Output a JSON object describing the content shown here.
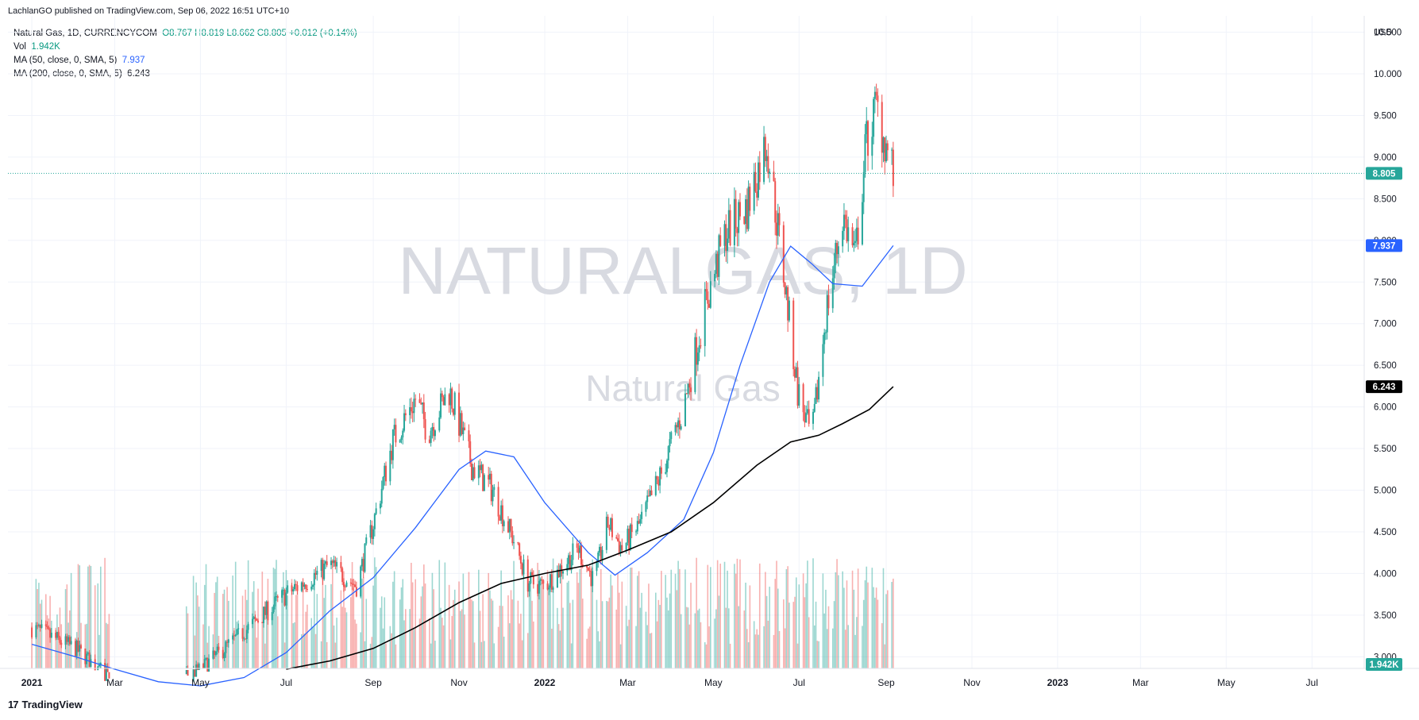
{
  "caption": "LachlanGO published on TradingView.com, Sep 06, 2022 16:51 UTC+10",
  "legend": {
    "symbol": "Natural Gas, 1D, CURRENCYCOM",
    "ohlc": "O8.767  H8.819  L8.662  C8.805",
    "change": "+0.012 (+0.14%)",
    "vol_label": "Vol",
    "vol_value": "1.942K",
    "ma50_label": "MA (50, close, 0, SMA, 5)",
    "ma50_value": "7.937",
    "ma200_label": "MA (200, close, 0, SMA, 5)",
    "ma200_value": "6.243"
  },
  "watermark": {
    "main": "NATURALGAS, 1D",
    "sub": "Natural Gas"
  },
  "logo": {
    "icon": "tradingview-logo-icon",
    "text": "TradingView"
  },
  "badges": {
    "currency": "USD",
    "price": "8.805",
    "ma50": "7.937",
    "ma200": "6.243",
    "volume": "1.942K"
  },
  "colors": {
    "up": "#26a69a",
    "down": "#ef5350",
    "ma50": "#2962ff",
    "ma200": "#000000",
    "price_badge": "#26a69a",
    "grid": "#f0f3fa"
  },
  "chart_data": {
    "type": "candlestick",
    "y_axis_ticks": [
      "3.000",
      "3.500",
      "4.000",
      "4.500",
      "5.000",
      "5.500",
      "6.000",
      "6.500",
      "7.000",
      "7.500",
      "8.000",
      "8.500",
      "9.000",
      "9.500",
      "10.000",
      "10.500"
    ],
    "ylim": [
      3.0,
      10.5
    ],
    "x_axis_ticks": [
      "2021",
      "Mar",
      "May",
      "Jul",
      "Sep",
      "Nov",
      "2022",
      "Mar",
      "May",
      "Jul",
      "Sep",
      "Nov",
      "2023",
      "Mar",
      "May",
      "Jul"
    ],
    "x_tick_bold": [
      "2021",
      "2022",
      "2023"
    ],
    "last_price": 8.805,
    "price_path": [
      [
        "2021-01-01",
        3.35
      ],
      [
        "2021-02-01",
        3.1
      ],
      [
        "2021-03-01",
        2.7
      ],
      [
        "2021-04-01",
        2.6
      ],
      [
        "2021-05-01",
        2.85
      ],
      [
        "2021-06-01",
        3.3
      ],
      [
        "2021-07-01",
        3.75
      ],
      [
        "2021-08-01",
        4.1
      ],
      [
        "2021-08-20",
        3.85
      ],
      [
        "2021-09-01",
        4.6
      ],
      [
        "2021-09-15",
        5.6
      ],
      [
        "2021-10-01",
        6.1
      ],
      [
        "2021-10-10",
        5.7
      ],
      [
        "2021-10-25",
        6.2
      ],
      [
        "2021-11-10",
        5.3
      ],
      [
        "2021-11-25",
        5.0
      ],
      [
        "2021-12-10",
        4.4
      ],
      [
        "2021-12-20",
        3.9
      ],
      [
        "2022-01-01",
        3.85
      ],
      [
        "2022-01-25",
        4.3
      ],
      [
        "2022-02-05",
        3.9
      ],
      [
        "2022-02-15",
        4.6
      ],
      [
        "2022-02-25",
        4.3
      ],
      [
        "2022-03-10",
        4.6
      ],
      [
        "2022-03-25",
        5.2
      ],
      [
        "2022-04-10",
        6.0
      ],
      [
        "2022-04-25",
        7.2
      ],
      [
        "2022-05-10",
        8.1
      ],
      [
        "2022-05-25",
        8.4
      ],
      [
        "2022-06-08",
        9.2
      ],
      [
        "2022-06-20",
        7.6
      ],
      [
        "2022-06-30",
        6.2
      ],
      [
        "2022-07-10",
        5.6
      ],
      [
        "2022-07-20",
        7.1
      ],
      [
        "2022-08-01",
        8.3
      ],
      [
        "2022-08-10",
        7.8
      ],
      [
        "2022-08-18",
        9.2
      ],
      [
        "2022-08-25",
        9.6
      ],
      [
        "2022-09-06",
        8.805
      ]
    ],
    "ma50": [
      [
        "2021-01-01",
        3.15
      ],
      [
        "2021-02-01",
        3.0
      ],
      [
        "2021-03-01",
        2.85
      ],
      [
        "2021-04-01",
        2.7
      ],
      [
        "2021-05-01",
        2.65
      ],
      [
        "2021-06-01",
        2.75
      ],
      [
        "2021-07-01",
        3.05
      ],
      [
        "2021-08-01",
        3.55
      ],
      [
        "2021-09-01",
        3.95
      ],
      [
        "2021-10-01",
        4.55
      ],
      [
        "2021-11-01",
        5.25
      ],
      [
        "2021-11-20",
        5.47
      ],
      [
        "2021-12-10",
        5.4
      ],
      [
        "2022-01-01",
        4.85
      ],
      [
        "2022-02-01",
        4.25
      ],
      [
        "2022-02-20",
        3.98
      ],
      [
        "2022-03-15",
        4.25
      ],
      [
        "2022-04-10",
        4.65
      ],
      [
        "2022-05-01",
        5.45
      ],
      [
        "2022-05-20",
        6.5
      ],
      [
        "2022-06-10",
        7.5
      ],
      [
        "2022-06-25",
        7.93
      ],
      [
        "2022-07-10",
        7.72
      ],
      [
        "2022-07-25",
        7.48
      ],
      [
        "2022-08-15",
        7.45
      ],
      [
        "2022-09-06",
        7.937
      ]
    ],
    "ma200": [
      [
        "2021-07-01",
        2.85
      ],
      [
        "2021-08-01",
        2.95
      ],
      [
        "2021-09-01",
        3.1
      ],
      [
        "2021-10-01",
        3.35
      ],
      [
        "2021-11-01",
        3.65
      ],
      [
        "2021-12-01",
        3.88
      ],
      [
        "2022-01-01",
        4.0
      ],
      [
        "2022-02-01",
        4.1
      ],
      [
        "2022-03-01",
        4.28
      ],
      [
        "2022-04-01",
        4.5
      ],
      [
        "2022-05-01",
        4.85
      ],
      [
        "2022-06-01",
        5.3
      ],
      [
        "2022-06-25",
        5.58
      ],
      [
        "2022-07-15",
        5.66
      ],
      [
        "2022-08-01",
        5.8
      ],
      [
        "2022-08-20",
        5.97
      ],
      [
        "2022-09-06",
        6.243
      ]
    ]
  }
}
